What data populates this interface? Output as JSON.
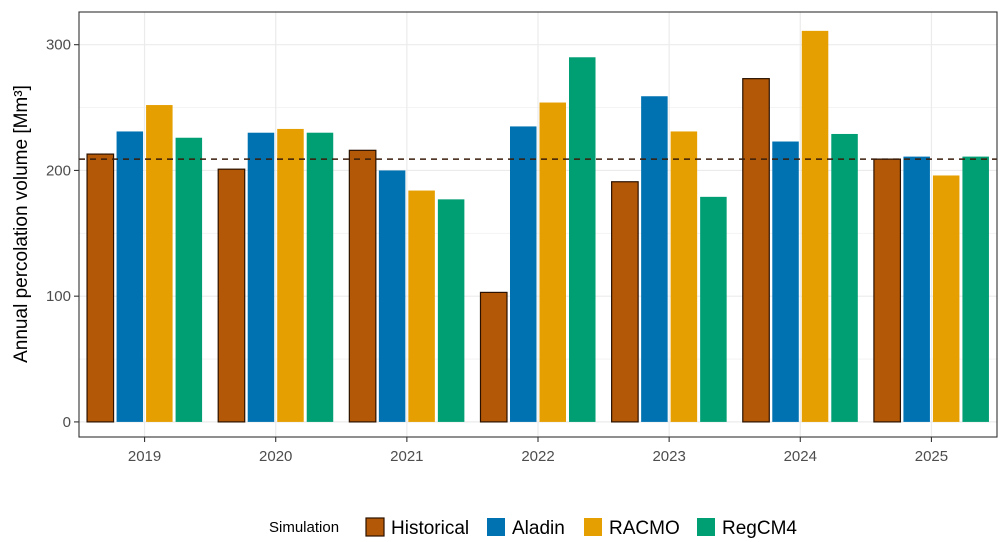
{
  "chart_data": {
    "type": "bar",
    "categories": [
      "2019",
      "2020",
      "2021",
      "2022",
      "2023",
      "2024",
      "2025"
    ],
    "series": [
      {
        "name": "Historical",
        "values": [
          213,
          201,
          216,
          103,
          191,
          273,
          209
        ]
      },
      {
        "name": "Aladin",
        "values": [
          231,
          230,
          200,
          235,
          259,
          223,
          211
        ]
      },
      {
        "name": "RACMO",
        "values": [
          252,
          233,
          184,
          254,
          231,
          311,
          196
        ]
      },
      {
        "name": "RegCM4",
        "values": [
          226,
          230,
          177,
          290,
          179,
          229,
          211
        ]
      }
    ],
    "colors": [
      "#b35806",
      "#0072b2",
      "#e69f00",
      "#009e73"
    ],
    "outline_series": "Historical",
    "reference_line": {
      "value": 209,
      "style": "dashed"
    },
    "ylabel": "Annual percolation volume [Mm³]",
    "xlabel": "",
    "yticks": [
      0,
      100,
      200,
      300
    ],
    "ylim": [
      -12,
      326
    ],
    "grid": true,
    "legend": {
      "title": "Simulation",
      "position": "bottom"
    }
  }
}
